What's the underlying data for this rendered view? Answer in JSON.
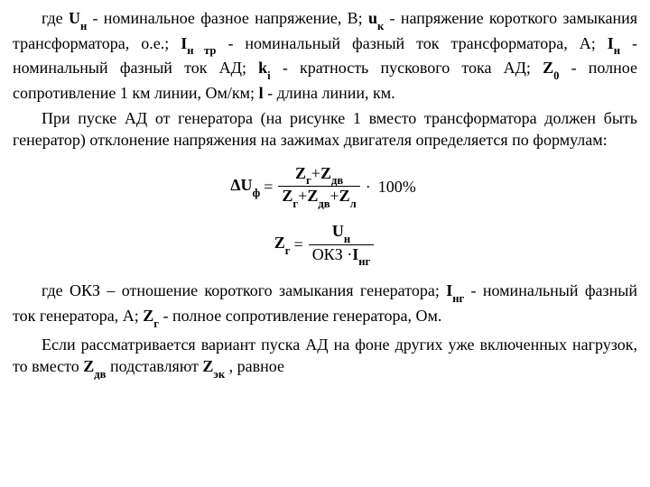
{
  "p1": {
    "t1": "где ",
    "s1": "U",
    "s1sub": "н",
    "t2": " - номинальное фазное напряжение, В; ",
    "s2": "u",
    "s2sub": "к",
    "t3": " - напряжение короткого замыкания трансформатора, о.е.; ",
    "s3": "I",
    "s3sub": "н тр",
    "t4": " - номинальный фаз­ный ток трансформатора, А; ",
    "s4": "I",
    "s4sub": "н",
    "t5": " - номинальный фазный ток АД; ",
    "s5": "k",
    "s5sub": "i",
    "t6": " - кратность пускового тока АД; ",
    "s6": "Z",
    "s6sub": "0",
    "t7": " - полное сопротивление 1 км линии, Ом/км; ",
    "s7": "l",
    "t8": " - длина линии, км."
  },
  "p2": "При пуске АД от генератора (на рисунке 1 вместо трансформа­тора должен быть генератор) отклонение напряжения на зажимах двигателя определяется по формулам:",
  "f1": {
    "lhs1": "ΔU",
    "lhs1sub": "ф",
    "eq": "=",
    "num1a": "Z",
    "num1asub": "г",
    "plus": "+",
    "num1b": "Z",
    "num1bsub": "дв",
    "den1a": "Z",
    "den1asub": "г",
    "den1b": "Z",
    "den1bsub": "дв",
    "den1c": "Z",
    "den1csub": "л",
    "tail": "100%",
    "dot": "·"
  },
  "f2": {
    "lhs": "Z",
    "lhssub": "г",
    "eq": "=",
    "num": "U",
    "numsub": "н",
    "den1": "ОКЗ",
    "dot": "·",
    "den2": "I",
    "den2sub": "нг"
  },
  "p3": {
    "t1": "где ОКЗ – отношение короткого замыкания генератора; ",
    "s1": "I",
    "s1sub": "нг",
    "t2": " - но­минальный фазный ток генератора, А; ",
    "s2": "Z",
    "s2sub": "г",
    "t3": " - полное сопротивление генератора, Ом."
  },
  "p4": {
    "t1": "Если рассматривается вариант пуска АД на фоне других уже включенных нагрузок, то вместо ",
    "s1": "Z",
    "s1sub": "дв",
    "t2": " подставляют ",
    "s2": "Z",
    "s2sub": "эк",
    "t3": " , равное"
  }
}
